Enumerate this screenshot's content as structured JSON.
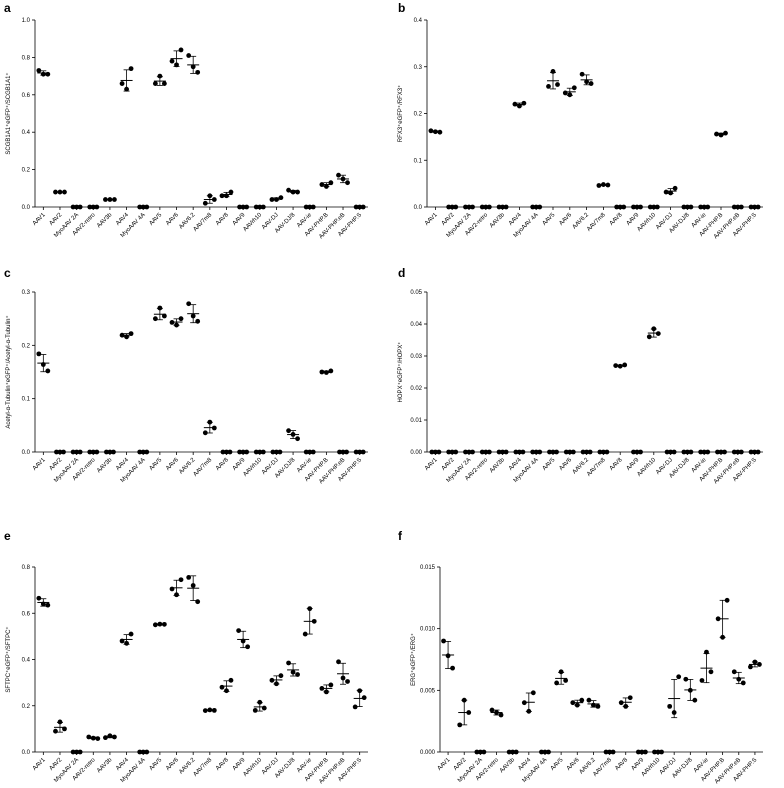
{
  "chart_data": [
    {
      "type": "scatter",
      "panel": "a",
      "ylabel": "SCGB1A1⁺eGFP⁺/SCGB1A1⁺",
      "ylim": [
        0,
        1.0
      ],
      "yticks": [
        "0.0",
        "0.2",
        "0.4",
        "0.6",
        "0.8",
        "1.0"
      ],
      "tick_values": [
        0,
        0.2,
        0.4,
        0.6,
        0.8,
        1.0
      ],
      "categories": [
        "AAV1",
        "AAV2",
        "MyoAAV 2A",
        "AAV2-retro",
        "AAV3b",
        "AAV4",
        "MyoAAV 4A",
        "AAV5",
        "AAV6",
        "AAV6.2",
        "AAV7m8",
        "AAV8",
        "AAV9",
        "AAVrh10",
        "AAV-DJ",
        "AAV-DJ/8",
        "AAV-ie",
        "AAV-PHP.B",
        "AAV-PHP.eB",
        "AAV-PHP.S"
      ],
      "points": [
        [
          0.73,
          0.71,
          0.71
        ],
        [
          0.08,
          0.08,
          0.08
        ],
        [
          0,
          0,
          0
        ],
        [
          0,
          0,
          0
        ],
        [
          0.04,
          0.04,
          0.04
        ],
        [
          0.74,
          0.66,
          0.63
        ],
        [
          0,
          0,
          0
        ],
        [
          0.7,
          0.66,
          0.66
        ],
        [
          0.84,
          0.78,
          0.76
        ],
        [
          0.81,
          0.75,
          0.72
        ],
        [
          0.06,
          0.04,
          0.02
        ],
        [
          0.08,
          0.06,
          0.06
        ],
        [
          0,
          0,
          0
        ],
        [
          0,
          0,
          0
        ],
        [
          0.05,
          0.04,
          0.04
        ],
        [
          0.09,
          0.08,
          0.08
        ],
        [
          0,
          0,
          0
        ],
        [
          0.13,
          0.12,
          0.11
        ],
        [
          0.17,
          0.15,
          0.13
        ],
        [
          0,
          0,
          0
        ]
      ]
    },
    {
      "type": "scatter",
      "panel": "b",
      "ylabel": "RFX3⁺eGFP⁺/RFX3⁺",
      "ylim": [
        0,
        0.4
      ],
      "yticks": [
        "0.0",
        "0.1",
        "0.2",
        "0.3",
        "0.4"
      ],
      "tick_values": [
        0,
        0.1,
        0.2,
        0.3,
        0.4
      ],
      "categories": [
        "AAV1",
        "AAV2",
        "MyoAAV 2A",
        "AAV2-retro",
        "AAV3b",
        "AAV4",
        "MyoAAV 4A",
        "AAV5",
        "AAV6",
        "AAV6.2",
        "AAV7m8",
        "AAV8",
        "AAV9",
        "AAVrh10",
        "AAV-DJ",
        "AAV-DJ/8",
        "AAV-ie",
        "AAV-PHP.B",
        "AAV-PHP.eB",
        "AAV-PHP.S"
      ],
      "points": [
        [
          0.163,
          0.161,
          0.16
        ],
        [
          0,
          0,
          0
        ],
        [
          0,
          0,
          0
        ],
        [
          0,
          0,
          0
        ],
        [
          0,
          0,
          0
        ],
        [
          0.222,
          0.22,
          0.216
        ],
        [
          0,
          0,
          0
        ],
        [
          0.29,
          0.262,
          0.258
        ],
        [
          0.255,
          0.244,
          0.24
        ],
        [
          0.284,
          0.268,
          0.264
        ],
        [
          0.048,
          0.047,
          0.046
        ],
        [
          0,
          0,
          0
        ],
        [
          0,
          0,
          0
        ],
        [
          0,
          0,
          0
        ],
        [
          0.04,
          0.032,
          0.03
        ],
        [
          0,
          0,
          0
        ],
        [
          0,
          0,
          0
        ],
        [
          0.158,
          0.156,
          0.154
        ],
        [
          0,
          0,
          0
        ],
        [
          0,
          0,
          0
        ]
      ]
    },
    {
      "type": "scatter",
      "panel": "c",
      "ylabel": "Acetyl-α-Tubulin⁺eGFP⁺/Acetyl-α-Tubulin⁺",
      "ylim": [
        0,
        0.3
      ],
      "yticks": [
        "0.0",
        "0.1",
        "0.2",
        "0.3"
      ],
      "tick_values": [
        0,
        0.1,
        0.2,
        0.3
      ],
      "categories": [
        "AAV1",
        "AAV2",
        "MyoAAV 2A",
        "AAV2-retro",
        "AAV3b",
        "AAV4",
        "MyoAAV 4A",
        "AAV5",
        "AAV6",
        "AAV6.2",
        "AAV7m8",
        "AAV8",
        "AAV9",
        "AAVrh10",
        "AAV-DJ",
        "AAV-DJ/8",
        "AAV-ie",
        "AAV-PHP.B",
        "AAV-PHP.eB",
        "AAV-PHP.S"
      ],
      "points": [
        [
          0.184,
          0.164,
          0.152
        ],
        [
          0,
          0,
          0
        ],
        [
          0,
          0,
          0
        ],
        [
          0,
          0,
          0
        ],
        [
          0,
          0,
          0
        ],
        [
          0.222,
          0.219,
          0.216
        ],
        [
          0,
          0,
          0
        ],
        [
          0.27,
          0.255,
          0.25
        ],
        [
          0.25,
          0.243,
          0.238
        ],
        [
          0.278,
          0.255,
          0.245
        ],
        [
          0.056,
          0.045,
          0.036
        ],
        [
          0,
          0,
          0
        ],
        [
          0,
          0,
          0
        ],
        [
          0,
          0,
          0
        ],
        [
          0,
          0,
          0
        ],
        [
          0.04,
          0.033,
          0.025
        ],
        [
          0,
          0,
          0
        ],
        [
          0.152,
          0.15,
          0.149
        ],
        [
          0,
          0,
          0
        ],
        [
          0,
          0,
          0
        ]
      ]
    },
    {
      "type": "scatter",
      "panel": "d",
      "ylabel": "HOPX⁺eGFP⁺/HOPX⁺",
      "ylim": [
        0,
        0.05
      ],
      "yticks": [
        "0.00",
        "0.01",
        "0.02",
        "0.03",
        "0.04",
        "0.05"
      ],
      "tick_values": [
        0,
        0.01,
        0.02,
        0.03,
        0.04,
        0.05
      ],
      "categories": [
        "AAV1",
        "AAV2",
        "MyoAAV 2A",
        "AAV2-retro",
        "AAV3b",
        "AAV4",
        "MyoAAV 4A",
        "AAV5",
        "AAV6",
        "AAV6.2",
        "AAV7m8",
        "AAV8",
        "AAV9",
        "AAVrh10",
        "AAV-DJ",
        "AAV-DJ/8",
        "AAV-ie",
        "AAV-PHP.B",
        "AAV-PHP.eB",
        "AAV-PHP.S"
      ],
      "points": [
        [
          0,
          0,
          0
        ],
        [
          0,
          0,
          0
        ],
        [
          0,
          0,
          0
        ],
        [
          0,
          0,
          0
        ],
        [
          0,
          0,
          0
        ],
        [
          0,
          0,
          0
        ],
        [
          0,
          0,
          0
        ],
        [
          0,
          0,
          0
        ],
        [
          0,
          0,
          0
        ],
        [
          0,
          0,
          0
        ],
        [
          0,
          0,
          0
        ],
        [
          0.0272,
          0.027,
          0.0268
        ],
        [
          0,
          0,
          0
        ],
        [
          0.0385,
          0.037,
          0.036
        ],
        [
          0,
          0,
          0
        ],
        [
          0,
          0,
          0
        ],
        [
          0,
          0,
          0
        ],
        [
          0,
          0,
          0
        ],
        [
          0,
          0,
          0
        ],
        [
          0,
          0,
          0
        ]
      ]
    },
    {
      "type": "scatter",
      "panel": "e",
      "ylabel": "SFTPC⁺eGFP⁺/SFTPC⁺",
      "ylim": [
        0,
        0.8
      ],
      "yticks": [
        "0.0",
        "0.2",
        "0.4",
        "0.6",
        "0.8"
      ],
      "tick_values": [
        0,
        0.2,
        0.4,
        0.6,
        0.8
      ],
      "categories": [
        "AAV1",
        "AAV2",
        "MyoAAV 2A",
        "AAV2-retro",
        "AAV3b",
        "AAV4",
        "MyoAAV 4A",
        "AAV5",
        "AAV6",
        "AAV6.2",
        "AAV7m8",
        "AAV8",
        "AAV9",
        "AAVrh10",
        "AAV-DJ",
        "AAV-DJ/8",
        "AAV-ie",
        "AAV-PHP.B",
        "AAV-PHP.eB",
        "AAV-PHP.S"
      ],
      "points": [
        [
          0.665,
          0.64,
          0.635
        ],
        [
          0.13,
          0.1,
          0.09
        ],
        [
          0,
          0,
          0
        ],
        [
          0.065,
          0.06,
          0.058
        ],
        [
          0.07,
          0.065,
          0.062
        ],
        [
          0.51,
          0.48,
          0.47
        ],
        [
          0,
          0,
          0
        ],
        [
          0.553,
          0.552,
          0.55
        ],
        [
          0.745,
          0.705,
          0.68
        ],
        [
          0.755,
          0.72,
          0.65
        ],
        [
          0.182,
          0.18,
          0.179
        ],
        [
          0.31,
          0.28,
          0.265
        ],
        [
          0.525,
          0.48,
          0.455
        ],
        [
          0.215,
          0.19,
          0.18
        ],
        [
          0.33,
          0.31,
          0.295
        ],
        [
          0.385,
          0.345,
          0.335
        ],
        [
          0.62,
          0.565,
          0.51
        ],
        [
          0.29,
          0.275,
          0.26
        ],
        [
          0.39,
          0.32,
          0.305
        ],
        [
          0.265,
          0.235,
          0.195
        ]
      ]
    },
    {
      "type": "scatter",
      "panel": "f",
      "ylabel": "ERG⁺eGFP⁺/ERG⁺",
      "ylim": [
        0,
        0.015
      ],
      "yticks": [
        "0.000",
        "0.005",
        "0.010",
        "0.015"
      ],
      "tick_values": [
        0,
        0.005,
        0.01,
        0.015
      ],
      "categories": [
        "AAV1",
        "AAV2",
        "MyoAAV 2A",
        "AAV2-retro",
        "AAV3b",
        "AAV4",
        "MyoAAV 4A",
        "AAV5",
        "AAV6",
        "AAV6.2",
        "AAV7m8",
        "AAV8",
        "AAV9",
        "AAVrh10",
        "AAV-DJ",
        "AAV-DJ/8",
        "AAV-ie",
        "AAV-PHP.B",
        "AAV-PHP.eB",
        "AAV-PHP.S"
      ],
      "points": [
        [
          0.009,
          0.0078,
          0.0068
        ],
        [
          0.0042,
          0.0032,
          0.0022
        ],
        [
          0,
          0,
          0
        ],
        [
          0.0034,
          0.0032,
          0.003
        ],
        [
          0,
          0,
          0
        ],
        [
          0.0048,
          0.004,
          0.0033
        ],
        [
          0,
          0,
          0
        ],
        [
          0.0065,
          0.0058,
          0.0056
        ],
        [
          0.0042,
          0.004,
          0.0038
        ],
        [
          0.0042,
          0.0038,
          0.0037
        ],
        [
          0,
          0,
          0
        ],
        [
          0.0044,
          0.004,
          0.0037
        ],
        [
          0,
          0,
          0
        ],
        [
          0,
          0,
          0
        ],
        [
          0.0061,
          0.0037,
          0.0032
        ],
        [
          0.0059,
          0.005,
          0.0042
        ],
        [
          0.0081,
          0.0065,
          0.0058
        ],
        [
          0.0123,
          0.0108,
          0.0093
        ],
        [
          0.0065,
          0.0059,
          0.0056
        ],
        [
          0.0073,
          0.0071,
          0.0069
        ]
      ]
    }
  ]
}
